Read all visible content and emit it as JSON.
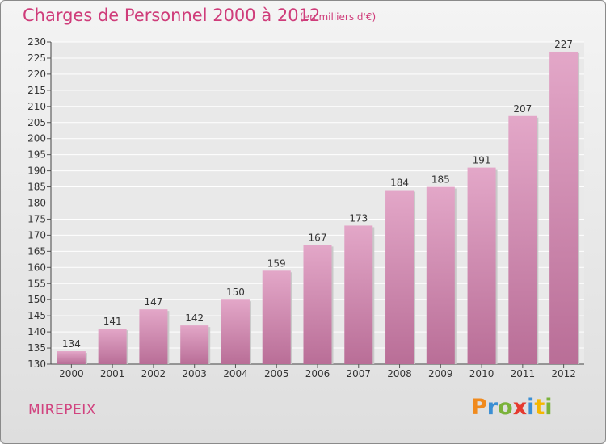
{
  "chart_data": {
    "type": "bar",
    "title": "Charges de Personnel 2000 à 2012",
    "subtitle": "(en milliers d'€)",
    "categories": [
      "2000",
      "2001",
      "2002",
      "2003",
      "2004",
      "2005",
      "2006",
      "2007",
      "2008",
      "2009",
      "2010",
      "2011",
      "2012"
    ],
    "values": [
      134,
      141,
      147,
      142,
      150,
      159,
      167,
      173,
      184,
      185,
      191,
      207,
      227
    ],
    "ylim": [
      130,
      230
    ],
    "ytick_step": 5,
    "xlabel": "",
    "ylabel": "",
    "grid": true
  },
  "footer": {
    "commune": "MIREPEIX",
    "logo_letters": [
      "P",
      "r",
      "o",
      "x",
      "i",
      "t",
      "i"
    ],
    "logo_colors": [
      "#f08a1d",
      "#3b8fd4",
      "#7ab23a",
      "#e53a2f",
      "#3b8fd4",
      "#f5b700",
      "#7ab23a"
    ]
  },
  "colors": {
    "bar_light": "#e3a7c8",
    "bar_dark": "#b96e97",
    "grid": "#ffffff",
    "title": "#cf3c7a"
  }
}
